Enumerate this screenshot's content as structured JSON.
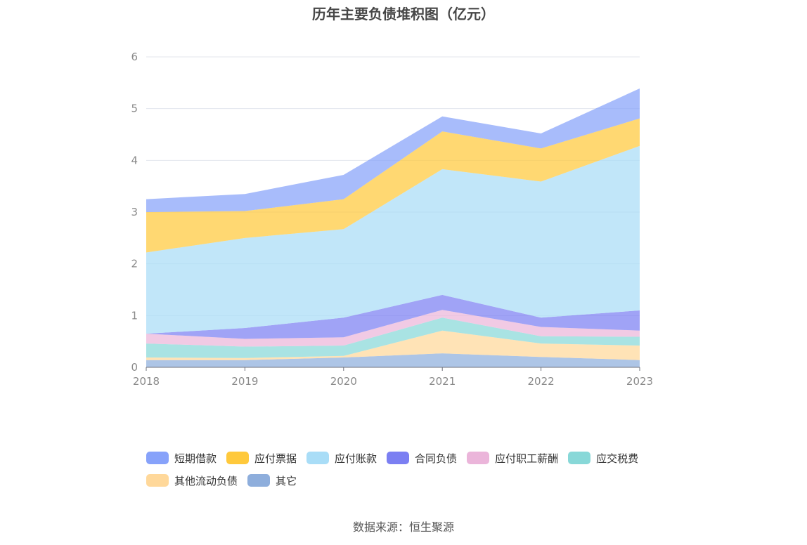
{
  "chart_data": {
    "type": "area",
    "stacked": true,
    "title": "历年主要负债堆积图（亿元）",
    "x": [
      "2018",
      "2019",
      "2020",
      "2021",
      "2022",
      "2023"
    ],
    "ylim": [
      0,
      6
    ],
    "yticks": [
      0,
      1,
      2,
      3,
      4,
      5,
      6
    ],
    "grid": true,
    "legend_position": "bottom",
    "series": [
      {
        "name": "其它",
        "color": "#8eaedc",
        "values": [
          0.14,
          0.14,
          0.19,
          0.27,
          0.2,
          0.14
        ]
      },
      {
        "name": "其他流动负债",
        "color": "#ffd89a",
        "values": [
          0.05,
          0.04,
          0.03,
          0.44,
          0.26,
          0.28
        ]
      },
      {
        "name": "应交税费",
        "color": "#88d8d8",
        "values": [
          0.27,
          0.22,
          0.2,
          0.25,
          0.14,
          0.17
        ]
      },
      {
        "name": "应付职工薪酬",
        "color": "#ebb5da",
        "values": [
          0.19,
          0.15,
          0.16,
          0.15,
          0.18,
          0.12
        ]
      },
      {
        "name": "合同负债",
        "color": "#7b7ff2",
        "values": [
          0.0,
          0.21,
          0.38,
          0.29,
          0.18,
          0.39
        ]
      },
      {
        "name": "应付账款",
        "color": "#a9ddf7",
        "values": [
          1.57,
          1.74,
          1.71,
          2.43,
          2.63,
          3.18
        ]
      },
      {
        "name": "应付票据",
        "color": "#ffc93c",
        "values": [
          0.78,
          0.52,
          0.58,
          0.73,
          0.64,
          0.53
        ]
      },
      {
        "name": "短期借款",
        "color": "#87a2fa",
        "values": [
          0.25,
          0.33,
          0.47,
          0.29,
          0.29,
          0.58
        ]
      }
    ]
  },
  "legend_order": [
    "短期借款",
    "应付票据",
    "应付账款",
    "合同负债",
    "应付职工薪酬",
    "应交税费",
    "其他流动负债",
    "其它"
  ],
  "source": "数据来源：恒生聚源"
}
